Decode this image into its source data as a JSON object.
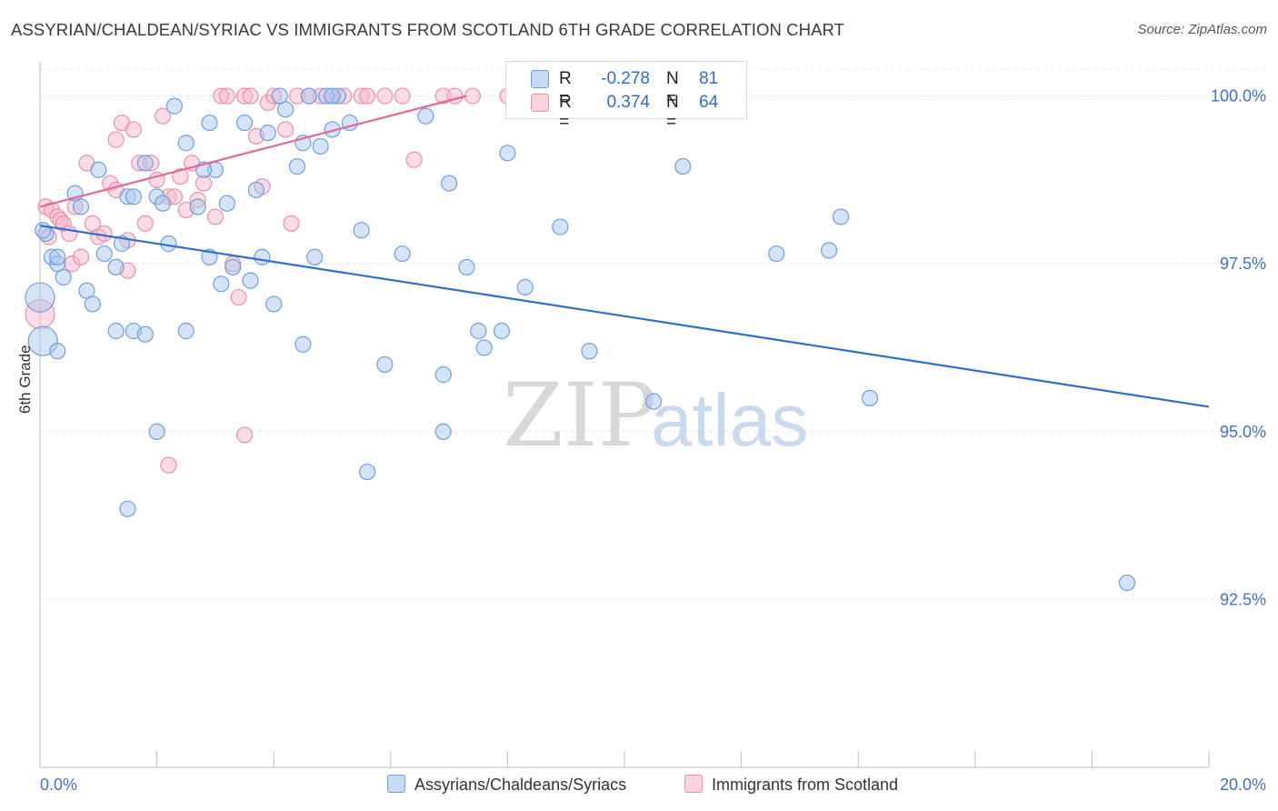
{
  "header": {
    "title": "ASSYRIAN/CHALDEAN/SYRIAC VS IMMIGRANTS FROM SCOTLAND 6TH GRADE CORRELATION CHART",
    "source": "Source: ZipAtlas.com"
  },
  "legend_top": {
    "rows": [
      {
        "r_label": "R =",
        "r_value": "-0.278",
        "n_label": "N =",
        "n_value": "81"
      },
      {
        "r_label": "R =",
        "r_value": "0.374",
        "n_label": "N =",
        "n_value": "64"
      }
    ]
  },
  "legend_bottom": {
    "items": [
      {
        "label": "Assyrians/Chaldeans/Syriacs"
      },
      {
        "label": "Immigrants from Scotland"
      }
    ]
  },
  "watermark": {
    "zip": "ZIP",
    "atlas": "atlas"
  },
  "colors": {
    "blue_fill": "#a9c8ef",
    "blue_stroke": "#6f9fdc",
    "blue_line": "#2e6fcd",
    "pink_fill": "#f7b8cb",
    "pink_stroke": "#ec8fac",
    "pink_line": "#e0689a",
    "grid": "#e4e4e4",
    "tick_text": "#3d72c8"
  },
  "chart_data": {
    "type": "scatter",
    "title": "ASSYRIAN/CHALDEAN/SYRIAC VS IMMIGRANTS FROM SCOTLAND 6TH GRADE CORRELATION CHART",
    "xlabel": "",
    "ylabel": "6th Grade",
    "xlim": [
      0.0,
      20.0
    ],
    "ylim": [
      90.0,
      100.4
    ],
    "x_tick_labels": [
      "0.0%",
      "20.0%"
    ],
    "y_ticks": [
      92.5,
      95.0,
      97.5,
      100.0
    ],
    "y_tick_labels": [
      "92.5%",
      "95.0%",
      "97.5%",
      "100.0%"
    ],
    "grid": true,
    "legend_placement": "top-center",
    "series": [
      {
        "name": "Assyrians/Chaldeans/Syriacs",
        "color": "#a9c8ef",
        "trend": {
          "x": [
            0.0,
            20.0
          ],
          "y": [
            98.07,
            95.37
          ]
        },
        "points": [
          [
            0.1,
            97.95
          ],
          [
            0.2,
            97.6
          ],
          [
            0.3,
            97.5
          ],
          [
            0.4,
            97.3
          ],
          [
            0.6,
            98.55
          ],
          [
            0.7,
            98.35
          ],
          [
            0.8,
            97.1
          ],
          [
            0.9,
            96.9
          ],
          [
            1.0,
            98.9
          ],
          [
            1.1,
            97.65
          ],
          [
            1.3,
            97.45
          ],
          [
            1.4,
            97.8
          ],
          [
            1.5,
            98.5
          ],
          [
            1.6,
            98.5
          ],
          [
            1.8,
            99.0
          ],
          [
            2.0,
            98.5
          ],
          [
            2.1,
            98.4
          ],
          [
            2.2,
            97.8
          ],
          [
            1.3,
            96.5
          ],
          [
            1.6,
            96.5
          ],
          [
            1.8,
            96.45
          ],
          [
            2.3,
            99.85
          ],
          [
            2.5,
            96.5
          ],
          [
            2.5,
            99.3
          ],
          [
            2.7,
            98.35
          ],
          [
            2.9,
            99.6
          ],
          [
            3.0,
            98.9
          ],
          [
            3.1,
            97.2
          ],
          [
            3.3,
            97.45
          ],
          [
            3.5,
            99.6
          ],
          [
            3.6,
            97.25
          ],
          [
            3.8,
            97.6
          ],
          [
            3.9,
            99.45
          ],
          [
            4.0,
            96.9
          ],
          [
            4.4,
            98.95
          ],
          [
            4.5,
            96.3
          ],
          [
            4.7,
            97.6
          ],
          [
            4.8,
            99.25
          ],
          [
            5.0,
            99.5
          ],
          [
            5.1,
            100.0
          ],
          [
            5.3,
            99.6
          ],
          [
            5.5,
            98.0
          ],
          [
            5.6,
            94.4
          ],
          [
            5.9,
            96.0
          ],
          [
            6.2,
            97.65
          ],
          [
            6.6,
            99.7
          ],
          [
            6.9,
            95.85
          ],
          [
            6.9,
            95.0
          ],
          [
            7.0,
            98.7
          ],
          [
            7.3,
            97.45
          ],
          [
            7.5,
            96.5
          ],
          [
            7.6,
            96.25
          ],
          [
            7.9,
            96.5
          ],
          [
            8.0,
            99.15
          ],
          [
            8.3,
            97.15
          ],
          [
            8.9,
            98.05
          ],
          [
            9.4,
            96.2
          ],
          [
            10.5,
            95.45
          ],
          [
            11.0,
            98.95
          ],
          [
            12.6,
            97.65
          ],
          [
            13.5,
            97.7
          ],
          [
            13.7,
            98.2
          ],
          [
            14.2,
            95.5
          ],
          [
            18.6,
            92.75
          ],
          [
            0.05,
            96.35
          ],
          [
            0.3,
            96.2
          ],
          [
            1.5,
            93.85
          ],
          [
            2.0,
            95.0
          ],
          [
            4.1,
            100.0
          ],
          [
            4.6,
            100.0
          ],
          [
            4.9,
            100.0
          ],
          [
            0.0,
            97.0
          ],
          [
            0.05,
            98.0
          ],
          [
            0.3,
            97.6
          ],
          [
            2.8,
            98.9
          ],
          [
            4.2,
            99.8
          ],
          [
            3.2,
            98.4
          ],
          [
            3.7,
            98.6
          ],
          [
            5.0,
            100.0
          ],
          [
            4.5,
            99.3
          ],
          [
            2.9,
            97.6
          ]
        ]
      },
      {
        "name": "Immigrants from Scotland",
        "color": "#f7b8cb",
        "trend": {
          "x": [
            0.0,
            7.3
          ],
          "y": [
            98.35,
            100.0
          ]
        },
        "points": [
          [
            0.1,
            98.35
          ],
          [
            0.15,
            97.9
          ],
          [
            0.2,
            98.3
          ],
          [
            0.3,
            98.2
          ],
          [
            0.35,
            98.15
          ],
          [
            0.4,
            98.1
          ],
          [
            0.5,
            97.95
          ],
          [
            0.55,
            97.5
          ],
          [
            0.6,
            98.35
          ],
          [
            0.7,
            97.6
          ],
          [
            0.8,
            99.0
          ],
          [
            0.9,
            98.1
          ],
          [
            1.0,
            97.9
          ],
          [
            1.1,
            97.95
          ],
          [
            1.2,
            98.7
          ],
          [
            1.3,
            99.35
          ],
          [
            1.4,
            99.6
          ],
          [
            1.5,
            97.85
          ],
          [
            1.6,
            99.5
          ],
          [
            1.7,
            99.0
          ],
          [
            1.8,
            98.1
          ],
          [
            1.9,
            99.0
          ],
          [
            2.0,
            98.75
          ],
          [
            2.1,
            99.7
          ],
          [
            2.2,
            98.5
          ],
          [
            2.3,
            98.5
          ],
          [
            2.4,
            98.8
          ],
          [
            2.5,
            98.3
          ],
          [
            2.6,
            99.0
          ],
          [
            2.7,
            98.45
          ],
          [
            2.8,
            98.7
          ],
          [
            3.0,
            98.2
          ],
          [
            3.1,
            100.0
          ],
          [
            3.2,
            100.0
          ],
          [
            3.3,
            97.5
          ],
          [
            3.4,
            97.0
          ],
          [
            3.5,
            100.0
          ],
          [
            3.6,
            100.0
          ],
          [
            3.7,
            99.4
          ],
          [
            3.8,
            98.65
          ],
          [
            3.9,
            99.9
          ],
          [
            4.0,
            100.0
          ],
          [
            4.2,
            99.5
          ],
          [
            4.3,
            98.1
          ],
          [
            4.4,
            100.0
          ],
          [
            4.6,
            100.0
          ],
          [
            4.8,
            100.0
          ],
          [
            5.0,
            100.0
          ],
          [
            5.2,
            100.0
          ],
          [
            5.5,
            100.0
          ],
          [
            5.6,
            100.0
          ],
          [
            5.9,
            100.0
          ],
          [
            6.2,
            100.0
          ],
          [
            6.4,
            99.05
          ],
          [
            6.9,
            100.0
          ],
          [
            7.1,
            100.0
          ],
          [
            7.4,
            100.0
          ],
          [
            8.0,
            100.0
          ],
          [
            11.9,
            100.0
          ],
          [
            0.0,
            96.75
          ],
          [
            1.5,
            97.4
          ],
          [
            2.2,
            94.5
          ],
          [
            3.5,
            94.95
          ],
          [
            1.3,
            98.6
          ]
        ]
      }
    ]
  }
}
